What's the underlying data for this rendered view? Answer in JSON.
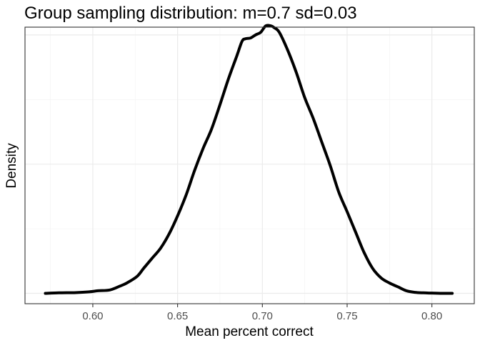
{
  "chart_data": {
    "type": "line",
    "title": "Group sampling distribution: m=0.7 sd=0.03",
    "xlabel": "Mean percent correct",
    "ylabel": "Density",
    "xlim": [
      0.56,
      0.825
    ],
    "ylim": [
      -0.04,
      1.03
    ],
    "x_ticks": [
      0.6,
      0.65,
      0.7,
      0.75,
      0.8
    ],
    "x_tick_labels": [
      "0.60",
      "0.65",
      "0.70",
      "0.75",
      "0.80"
    ],
    "y_gridlines": [
      0.0,
      0.5,
      1.0
    ],
    "y_tick_labels_shown": false,
    "grid": true,
    "series": [
      {
        "x": [
          0.572,
          0.58,
          0.59,
          0.598,
          0.603,
          0.61,
          0.616,
          0.62,
          0.626,
          0.63,
          0.635,
          0.64,
          0.645,
          0.65,
          0.655,
          0.66,
          0.665,
          0.67,
          0.675,
          0.68,
          0.685,
          0.688,
          0.69,
          0.693,
          0.696,
          0.699,
          0.702,
          0.705,
          0.707,
          0.71,
          0.715,
          0.72,
          0.725,
          0.73,
          0.735,
          0.74,
          0.745,
          0.75,
          0.755,
          0.76,
          0.765,
          0.77,
          0.775,
          0.78,
          0.785,
          0.79,
          0.795,
          0.8,
          0.805,
          0.812
        ],
        "y": [
          0.0,
          0.002,
          0.003,
          0.006,
          0.01,
          0.013,
          0.028,
          0.04,
          0.065,
          0.097,
          0.136,
          0.175,
          0.23,
          0.3,
          0.38,
          0.475,
          0.56,
          0.635,
          0.73,
          0.83,
          0.92,
          0.975,
          0.985,
          0.988,
          1.0,
          1.01,
          1.035,
          1.035,
          1.028,
          1.01,
          0.94,
          0.855,
          0.757,
          0.677,
          0.586,
          0.495,
          0.393,
          0.316,
          0.237,
          0.158,
          0.097,
          0.06,
          0.04,
          0.025,
          0.01,
          0.004,
          0.002,
          0.001,
          0.0,
          0.0
        ]
      }
    ]
  }
}
